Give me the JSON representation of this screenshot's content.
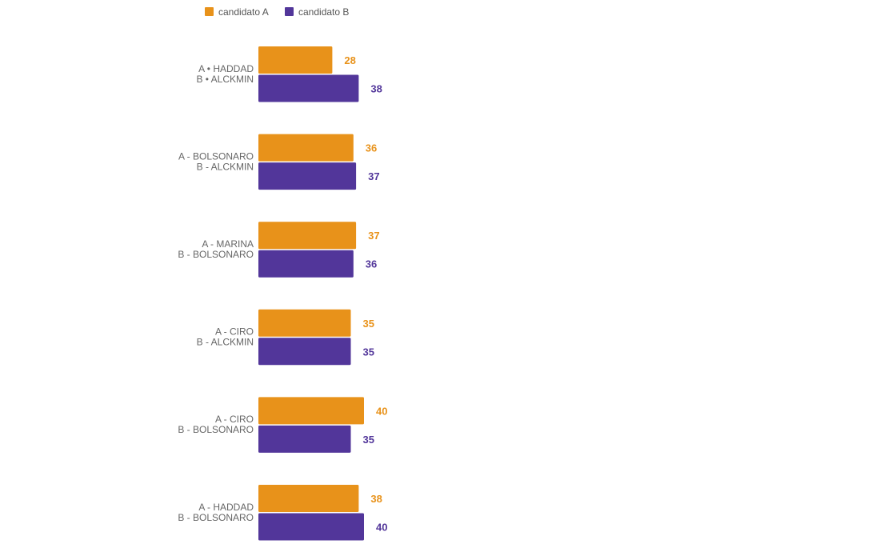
{
  "chart_data": {
    "type": "bar",
    "orientation": "horizontal",
    "title": "",
    "xlabel": "",
    "ylabel": "",
    "xlim": [
      0,
      40
    ],
    "grid": false,
    "legend_position": "top-left",
    "categories": [
      {
        "line1": "A • HADDAD",
        "line2": "B •  ALCKMIN"
      },
      {
        "line1": "A - BOLSONARO",
        "line2": "B - ALCKMIN"
      },
      {
        "line1": "A - MARINA",
        "line2": "B - BOLSONARO"
      },
      {
        "line1": "A - CIRO",
        "line2": "B - ALCKMIN"
      },
      {
        "line1": "A - CIRO",
        "line2": "B - BOLSONARO"
      },
      {
        "line1": "A - HADDAD",
        "line2": "B - BOLSONARO"
      }
    ],
    "series": [
      {
        "name": "candidato A",
        "color": "#E8921A",
        "values": [
          28,
          36,
          37,
          35,
          40,
          38
        ]
      },
      {
        "name": "candidato B",
        "color": "#52369A",
        "values": [
          38,
          37,
          36,
          35,
          35,
          40
        ]
      }
    ]
  }
}
